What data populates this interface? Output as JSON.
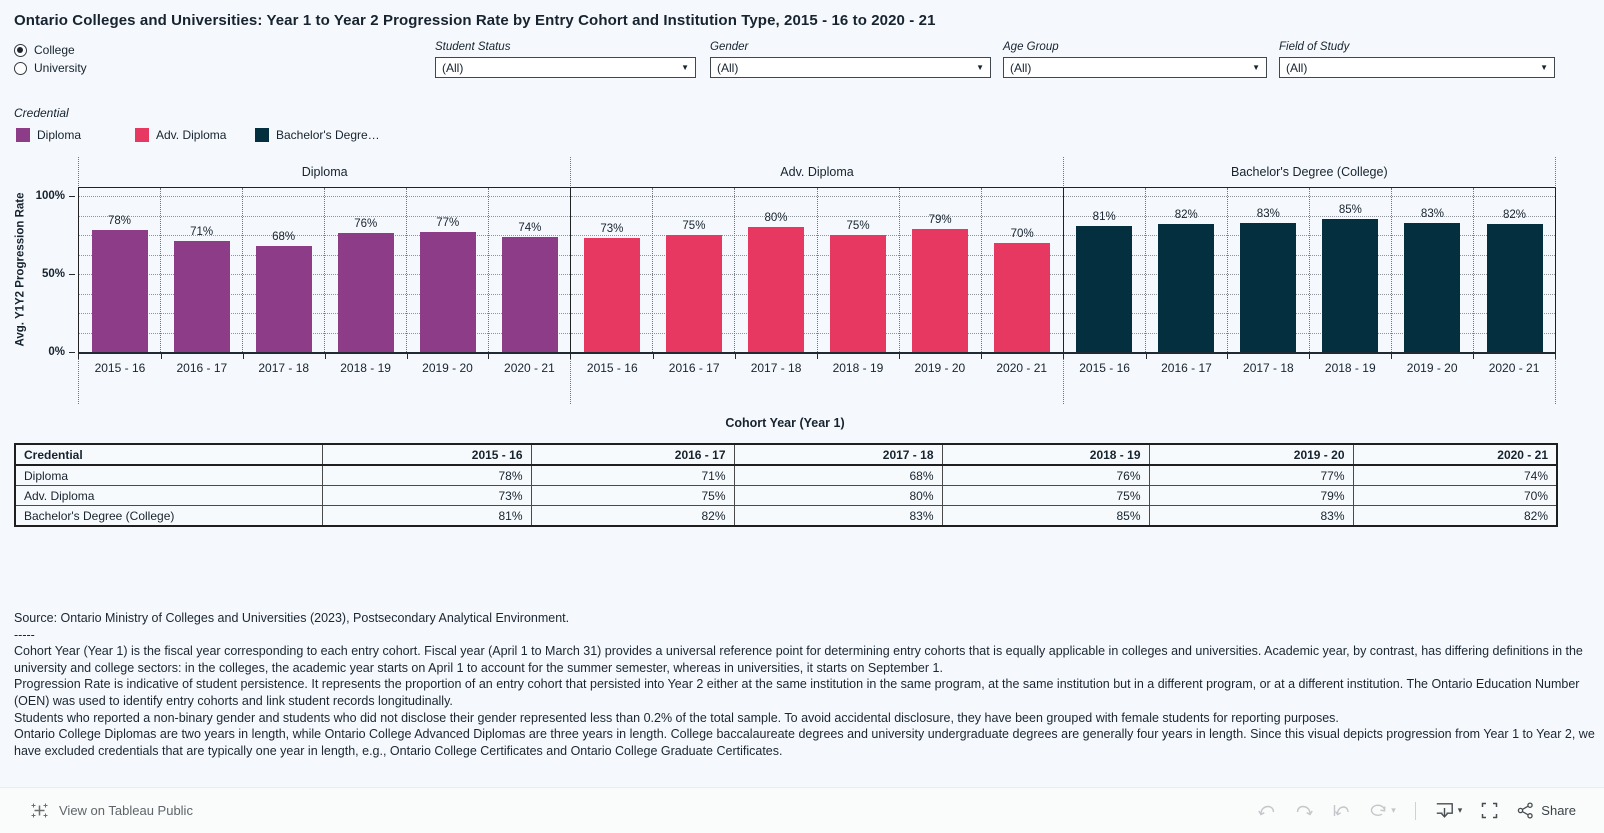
{
  "title": "Ontario Colleges and Universities: Year 1 to Year 2 Progression Rate by Entry Cohort and Institution Type, 2015 - 16 to 2020 - 21",
  "institution_toggle": {
    "options": [
      {
        "label": "College",
        "selected": true
      },
      {
        "label": "University",
        "selected": false
      }
    ]
  },
  "filters": [
    {
      "label": "Student Status",
      "value": "(All)"
    },
    {
      "label": "Gender",
      "value": "(All)"
    },
    {
      "label": "Age Group",
      "value": "(All)"
    },
    {
      "label": "Field of Study",
      "value": "(All)"
    }
  ],
  "legend": {
    "title": "Credential",
    "items": [
      {
        "label": "Diploma",
        "color": "#8d3c87"
      },
      {
        "label": "Adv. Diploma",
        "color": "#e73862"
      },
      {
        "label": "Bachelor's Degre…",
        "color": "#042f3f"
      }
    ]
  },
  "chart_data": {
    "type": "bar",
    "categories": [
      "2015 - 16",
      "2016 - 17",
      "2017 - 18",
      "2018 - 19",
      "2019 - 20",
      "2020 - 21"
    ],
    "series": [
      {
        "name": "Diploma",
        "color": "#8d3c87",
        "values": [
          78,
          71,
          68,
          76,
          77,
          74
        ]
      },
      {
        "name": "Adv. Diploma",
        "color": "#e73862",
        "values": [
          73,
          75,
          80,
          75,
          79,
          70
        ]
      },
      {
        "name": "Bachelor's Degree (College)",
        "color": "#042f3f",
        "values": [
          81,
          82,
          83,
          85,
          83,
          82
        ]
      }
    ],
    "value_suffix": "%",
    "ylabel": "Avg. Y1Y2 Progression Rate",
    "xlabel": "Cohort Year (Year 1)",
    "yticks": [
      {
        "label": "0%",
        "value": 0
      },
      {
        "label": "50%",
        "value": 50
      },
      {
        "label": "100%",
        "value": 100
      }
    ],
    "ylim": [
      0,
      105
    ],
    "grid": true,
    "gridline_step_pct": 12.5,
    "legend_position": "top-left"
  },
  "table": {
    "header": [
      "Credential",
      "2015 - 16",
      "2016 - 17",
      "2017 - 18",
      "2018 - 19",
      "2019 - 20",
      "2020 - 21"
    ],
    "rows": [
      {
        "label": "Diploma",
        "values": [
          "78%",
          "71%",
          "68%",
          "76%",
          "77%",
          "74%"
        ]
      },
      {
        "label": "Adv. Diploma",
        "values": [
          "73%",
          "75%",
          "80%",
          "75%",
          "79%",
          "70%"
        ]
      },
      {
        "label": "Bachelor's Degree (College)",
        "values": [
          "81%",
          "82%",
          "83%",
          "85%",
          "83%",
          "82%"
        ]
      }
    ]
  },
  "notes": {
    "lines": [
      "Source: Ontario Ministry of Colleges and Universities (2023), Postsecondary Analytical Environment.",
      "-----",
      "Cohort Year (Year 1) is the fiscal year corresponding to each entry cohort. Fiscal year (April 1 to March 31) provides a universal reference point for determining entry cohorts that is equally applicable in colleges and universities. Academic year, by contrast, has differing definitions in the university and college sectors: in the colleges, the academic year starts on April 1 to account for the summer semester, whereas in universities, it starts on September 1.",
      "Progression Rate is indicative of student persistence. It represents the proportion of an entry cohort that persisted into Year 2 either at the same institution in the same program, at the same institution but in a different program, or at a different institution. The Ontario Education Number (OEN) was used to identify entry cohorts and link student records longitudinally.",
      "Students who reported a non-binary gender and students who did not disclose their gender represented less than 0.2% of the total sample. To avoid accidental disclosure, they have been grouped with female students for reporting purposes.",
      "Ontario College Diplomas are two years in length, while Ontario College Advanced Diplomas are three years in length. College baccalaureate degrees and university undergraduate degrees are generally four years in length. Since this visual depicts progression from Year 1 to Year 2, we have excluded credentials that are typically one year in length, e.g., Ontario College Certificates and Ontario College Graduate Certificates."
    ]
  },
  "toolbar": {
    "view_label": "View on Tableau Public",
    "share_label": "Share",
    "icons": [
      "undo",
      "redo",
      "replay",
      "refresh",
      "download",
      "fullscreen",
      "share"
    ]
  }
}
